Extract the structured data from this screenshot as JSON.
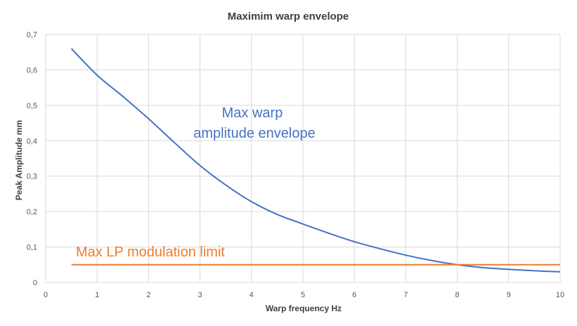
{
  "chart_data": {
    "type": "line",
    "title": "Maximim warp envelope",
    "xlabel": "Warp frequency Hz",
    "ylabel": "Peak Amplitude mm",
    "xlim": [
      0,
      10
    ],
    "ylim": [
      0,
      0.7
    ],
    "x_ticks": [
      "0",
      "1",
      "2",
      "3",
      "4",
      "5",
      "6",
      "7",
      "8",
      "9",
      "10"
    ],
    "y_ticks": [
      "0",
      "0,1",
      "0,2",
      "0,3",
      "0,4",
      "0,5",
      "0,6",
      "0,7"
    ],
    "grid": true,
    "series": [
      {
        "color": "#4472C4",
        "x": [
          0.5,
          1,
          1.5,
          2,
          2.5,
          3,
          3.5,
          4,
          4.5,
          5,
          5.5,
          6,
          6.5,
          7,
          7.5,
          8,
          8.5,
          9,
          9.5,
          10
        ],
        "y": [
          0.66,
          0.585,
          0.525,
          0.462,
          0.395,
          0.33,
          0.275,
          0.228,
          0.192,
          0.165,
          0.139,
          0.115,
          0.095,
          0.077,
          0.062,
          0.05,
          0.042,
          0.037,
          0.033,
          0.03
        ]
      },
      {
        "color": "#ED7D31",
        "x": [
          0.5,
          10
        ],
        "y": [
          0.05,
          0.05
        ]
      }
    ],
    "annotations": [
      {
        "text": "Max warp",
        "color": "#4472C4"
      },
      {
        "text": "amplitude envelope",
        "color": "#4472C4"
      },
      {
        "text": "Max LP modulation limit",
        "color": "#ED7D31"
      }
    ]
  }
}
